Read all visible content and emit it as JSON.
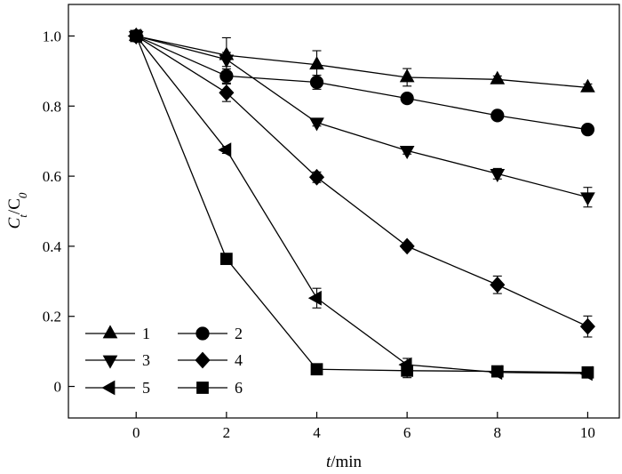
{
  "chart_data": {
    "type": "line",
    "xlabel_main": "t",
    "xlabel_unit": "/min",
    "ylabel_parts": [
      "C",
      "t",
      "/C",
      "0"
    ],
    "xlim": [
      -1.5,
      10.7
    ],
    "ylim": [
      -0.09,
      1.09
    ],
    "x_ticks": [
      0,
      2,
      4,
      6,
      8,
      10
    ],
    "x_tick_labels": [
      "0",
      "2",
      "4",
      "6",
      "8",
      "10"
    ],
    "y_ticks": [
      0,
      0.2,
      0.4,
      0.6,
      0.8,
      1.0
    ],
    "y_tick_labels": [
      "0",
      "0.2",
      "0.4",
      "0.6",
      "0.8",
      "1.0"
    ],
    "grid": false,
    "legend_position": "bottom-left",
    "x": [
      0,
      2,
      4,
      6,
      8,
      10
    ],
    "series": [
      {
        "name": "1",
        "marker": "triangle-up",
        "values": [
          1.0,
          0.945,
          0.918,
          0.882,
          0.876,
          0.853
        ],
        "errors": [
          0,
          0.05,
          0.04,
          0.025,
          0.01,
          0.01
        ]
      },
      {
        "name": "2",
        "marker": "circle",
        "values": [
          1.0,
          0.886,
          0.868,
          0.822,
          0.773,
          0.733
        ],
        "errors": [
          0,
          0.02,
          0.02,
          0.01,
          0.01,
          0.012
        ]
      },
      {
        "name": "3",
        "marker": "triangle-down",
        "values": [
          1.0,
          0.933,
          0.753,
          0.673,
          0.607,
          0.54
        ],
        "errors": [
          0,
          0.02,
          0.01,
          0.01,
          0.015,
          0.028
        ]
      },
      {
        "name": "4",
        "marker": "diamond",
        "values": [
          1.0,
          0.838,
          0.597,
          0.4,
          0.29,
          0.171
        ],
        "errors": [
          0,
          0.025,
          0.015,
          0.01,
          0.025,
          0.03
        ]
      },
      {
        "name": "5",
        "marker": "triangle-left",
        "values": [
          1.0,
          0.675,
          0.252,
          0.062,
          0.04,
          0.037
        ],
        "errors": [
          0,
          0.01,
          0.028,
          0.018,
          0.008,
          0.008
        ]
      },
      {
        "name": "6",
        "marker": "square",
        "values": [
          1.0,
          0.364,
          0.049,
          0.045,
          0.043,
          0.04
        ],
        "errors": [
          0,
          0.008,
          0.008,
          0.02,
          0.008,
          0.008
        ]
      }
    ]
  }
}
